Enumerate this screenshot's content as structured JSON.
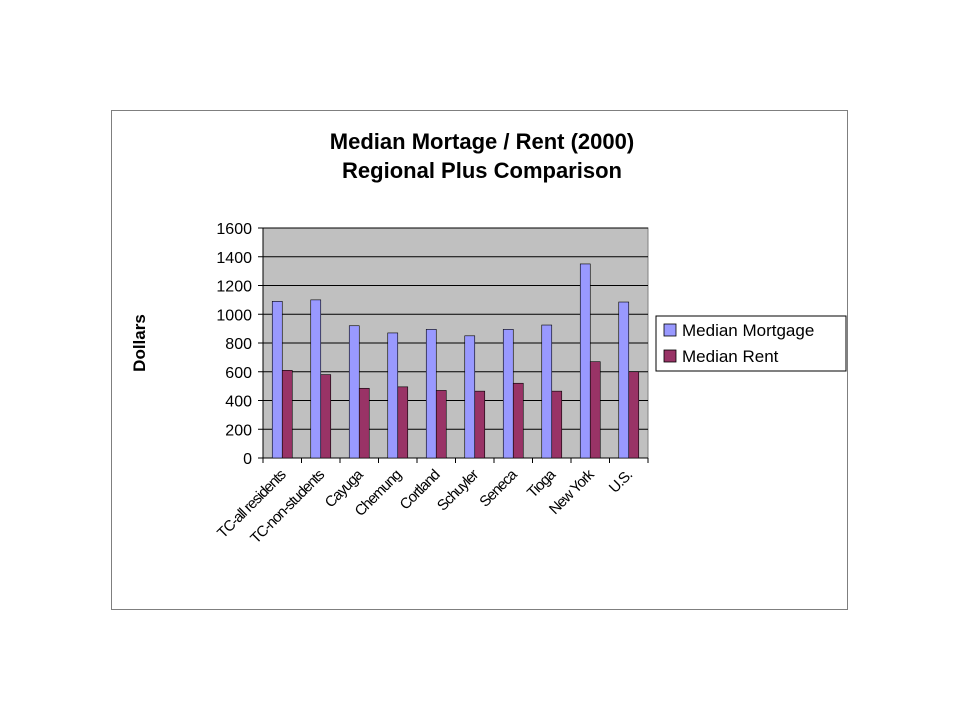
{
  "chart_data": {
    "type": "bar",
    "title": [
      "Median Mortage / Rent (2000)",
      "Regional Plus Comparison"
    ],
    "ylabel": "Dollars",
    "xlabel": "",
    "ylim": [
      0,
      1600
    ],
    "yticks": [
      0,
      200,
      400,
      600,
      800,
      1000,
      1200,
      1400,
      1600
    ],
    "grid": true,
    "legend_position": "right",
    "categories": [
      "TC-all residents",
      "TC-non-students",
      "Cayuga",
      "Chemung",
      "Cortland",
      "Schuyler",
      "Seneca",
      "Tioga",
      "New York",
      "U.S."
    ],
    "series": [
      {
        "name": "Median Mortgage",
        "color": "#9999ff",
        "values": [
          1090,
          1100,
          920,
          870,
          895,
          850,
          895,
          925,
          1350,
          1085
        ]
      },
      {
        "name": "Median Rent",
        "color": "#993366",
        "values": [
          610,
          580,
          485,
          495,
          470,
          465,
          520,
          465,
          670,
          600
        ]
      }
    ],
    "plot_background": "#c0c0c0"
  }
}
